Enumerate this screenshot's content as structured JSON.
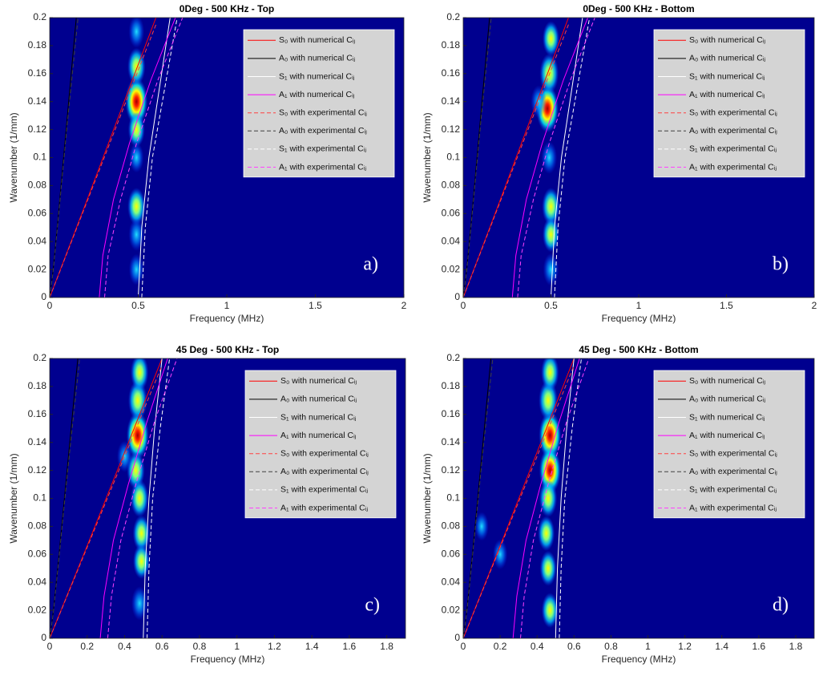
{
  "chart_data": [
    {
      "type": "line",
      "title": "0Deg - 500 KHz - Top",
      "xlabel": "Frequency (MHz)",
      "ylabel": "Wavenumber (1/mm)",
      "annotation": "a)",
      "xlim": [
        0,
        2
      ],
      "ylim": [
        0,
        0.2
      ],
      "xticks": [
        0,
        0.5,
        1,
        1.5,
        2
      ],
      "yticks": [
        0,
        0.02,
        0.04,
        0.06,
        0.08,
        0.1,
        0.12,
        0.14,
        0.16,
        0.18,
        0.2
      ],
      "background": "#00008f",
      "legend": "upper right",
      "series": [
        {
          "name": "S₀ with numerical Cᵢⱼ",
          "color": "#ff0000",
          "dash": false,
          "x": [
            0,
            0.2,
            0.4,
            0.6
          ],
          "values": [
            0,
            0.066,
            0.133,
            0.2
          ]
        },
        {
          "name": "A₀ with numerical Cᵢⱼ",
          "color": "#000000",
          "dash": false,
          "x": [
            0,
            0.02,
            0.05,
            0.1,
            0.15
          ],
          "values": [
            0,
            0.02,
            0.06,
            0.13,
            0.2
          ]
        },
        {
          "name": "S₁ with numerical Cᵢⱼ",
          "color": "#ffffff",
          "dash": false,
          "x": [
            0.5,
            0.52,
            0.56,
            0.62,
            0.68
          ],
          "values": [
            0,
            0.05,
            0.1,
            0.15,
            0.2
          ]
        },
        {
          "name": "A₁ with numerical Cᵢⱼ",
          "color": "#ff00ff",
          "dash": false,
          "x": [
            0.28,
            0.3,
            0.36,
            0.45,
            0.57,
            0.71
          ],
          "values": [
            0,
            0.03,
            0.07,
            0.11,
            0.155,
            0.2
          ]
        },
        {
          "name": "S₀ with experimental Cᵢⱼ",
          "color": "#ff4040",
          "dash": true,
          "x": [
            0,
            0.2,
            0.4,
            0.6
          ],
          "values": [
            0,
            0.065,
            0.13,
            0.195
          ]
        },
        {
          "name": "A₀ with experimental Cᵢⱼ",
          "color": "#404040",
          "dash": true,
          "x": [
            0,
            0.02,
            0.05,
            0.1,
            0.16
          ],
          "values": [
            0,
            0.019,
            0.058,
            0.125,
            0.2
          ]
        },
        {
          "name": "S₁ with experimental Cᵢⱼ",
          "color": "#ffffff",
          "dash": true,
          "x": [
            0.52,
            0.54,
            0.58,
            0.65,
            0.72
          ],
          "values": [
            0,
            0.05,
            0.1,
            0.15,
            0.2
          ]
        },
        {
          "name": "A₁ with experimental Cᵢⱼ",
          "color": "#ff40ff",
          "dash": true,
          "x": [
            0.31,
            0.33,
            0.4,
            0.49,
            0.61,
            0.75
          ],
          "values": [
            0,
            0.03,
            0.07,
            0.11,
            0.155,
            0.2
          ]
        }
      ],
      "peaks": {
        "x": [
          0.49,
          0.49,
          0.49,
          0.49,
          0.49,
          0.49,
          0.49,
          0.49
        ],
        "y": [
          0.14,
          0.165,
          0.12,
          0.065,
          0.045,
          0.02,
          0.1,
          0.19
        ],
        "intensity": [
          1,
          0.6,
          0.5,
          0.6,
          0.4,
          0.35,
          0.3,
          0.4
        ]
      }
    },
    {
      "type": "line",
      "title": "0Deg - 500 KHz - Bottom",
      "xlabel": "Frequency (MHz)",
      "ylabel": "Wavenumber (1/mm)",
      "annotation": "b)",
      "xlim": [
        0,
        2
      ],
      "ylim": [
        0,
        0.2
      ],
      "xticks": [
        0,
        0.5,
        1,
        1.5,
        2
      ],
      "yticks": [
        0,
        0.02,
        0.04,
        0.06,
        0.08,
        0.1,
        0.12,
        0.14,
        0.16,
        0.18,
        0.2
      ],
      "background": "#00008f",
      "legend": "upper right",
      "series": [
        {
          "name": "S₀ with numerical Cᵢⱼ",
          "color": "#ff0000",
          "dash": false,
          "x": [
            0,
            0.2,
            0.4,
            0.6
          ],
          "values": [
            0,
            0.066,
            0.133,
            0.2
          ]
        },
        {
          "name": "A₀ with numerical Cᵢⱼ",
          "color": "#000000",
          "dash": false,
          "x": [
            0,
            0.02,
            0.05,
            0.1,
            0.15
          ],
          "values": [
            0,
            0.02,
            0.06,
            0.13,
            0.2
          ]
        },
        {
          "name": "S₁ with numerical Cᵢⱼ",
          "color": "#ffffff",
          "dash": false,
          "x": [
            0.5,
            0.52,
            0.56,
            0.62,
            0.68
          ],
          "values": [
            0,
            0.05,
            0.1,
            0.15,
            0.2
          ]
        },
        {
          "name": "A₁ with numerical Cᵢⱼ",
          "color": "#ff00ff",
          "dash": false,
          "x": [
            0.28,
            0.3,
            0.36,
            0.45,
            0.57,
            0.71
          ],
          "values": [
            0,
            0.03,
            0.07,
            0.11,
            0.155,
            0.2
          ]
        },
        {
          "name": "S₀ with experimental Cᵢⱼ",
          "color": "#ff4040",
          "dash": true,
          "x": [
            0,
            0.2,
            0.4,
            0.6
          ],
          "values": [
            0,
            0.065,
            0.13,
            0.195
          ]
        },
        {
          "name": "A₀ with experimental Cᵢⱼ",
          "color": "#404040",
          "dash": true,
          "x": [
            0,
            0.02,
            0.05,
            0.1,
            0.16
          ],
          "values": [
            0,
            0.019,
            0.058,
            0.125,
            0.2
          ]
        },
        {
          "name": "S₁ with experimental Cᵢⱼ",
          "color": "#ffffff",
          "dash": true,
          "x": [
            0.52,
            0.54,
            0.58,
            0.65,
            0.72
          ],
          "values": [
            0,
            0.05,
            0.1,
            0.15,
            0.2
          ]
        },
        {
          "name": "A₁ with experimental Cᵢⱼ",
          "color": "#ff40ff",
          "dash": true,
          "x": [
            0.31,
            0.33,
            0.4,
            0.49,
            0.61,
            0.75
          ],
          "values": [
            0,
            0.03,
            0.07,
            0.11,
            0.155,
            0.2
          ]
        }
      ],
      "peaks": {
        "x": [
          0.48,
          0.49,
          0.5,
          0.5,
          0.5,
          0.49,
          0.43,
          0.5
        ],
        "y": [
          0.135,
          0.16,
          0.065,
          0.045,
          0.02,
          0.1,
          0.14,
          0.185
        ],
        "intensity": [
          1,
          0.7,
          0.6,
          0.5,
          0.4,
          0.4,
          0.4,
          0.5
        ]
      }
    },
    {
      "type": "line",
      "title": "45 Deg - 500 KHz - Top",
      "xlabel": "Frequency (MHz)",
      "ylabel": "Wavenumber (1/mm)",
      "annotation": "c)",
      "xlim": [
        0,
        1.9
      ],
      "ylim": [
        0,
        0.2
      ],
      "xticks": [
        0,
        0.2,
        0.4,
        0.6,
        0.8,
        1,
        1.2,
        1.4,
        1.6,
        1.8
      ],
      "yticks": [
        0,
        0.02,
        0.04,
        0.06,
        0.08,
        0.1,
        0.12,
        0.14,
        0.16,
        0.18,
        0.2
      ],
      "background": "#00008f",
      "legend": "upper right",
      "series": [
        {
          "name": "S₀ with numerical Cᵢⱼ",
          "color": "#ff0000",
          "dash": false,
          "x": [
            0,
            0.2,
            0.4,
            0.6
          ],
          "values": [
            0,
            0.066,
            0.133,
            0.2
          ]
        },
        {
          "name": "A₀ with numerical Cᵢⱼ",
          "color": "#000000",
          "dash": false,
          "x": [
            0,
            0.02,
            0.05,
            0.1,
            0.15
          ],
          "values": [
            0,
            0.02,
            0.06,
            0.13,
            0.2
          ]
        },
        {
          "name": "S₁ with numerical Cᵢⱼ",
          "color": "#ffffff",
          "dash": false,
          "x": [
            0.5,
            0.51,
            0.53,
            0.56,
            0.6
          ],
          "values": [
            0,
            0.05,
            0.1,
            0.15,
            0.2
          ]
        },
        {
          "name": "A₁ with numerical Cᵢⱼ",
          "color": "#ff00ff",
          "dash": false,
          "x": [
            0.27,
            0.29,
            0.34,
            0.42,
            0.52,
            0.63
          ],
          "values": [
            0,
            0.03,
            0.07,
            0.11,
            0.155,
            0.2
          ]
        },
        {
          "name": "S₀ with experimental Cᵢⱼ",
          "color": "#ff4040",
          "dash": true,
          "x": [
            0,
            0.2,
            0.4,
            0.6
          ],
          "values": [
            0,
            0.065,
            0.13,
            0.195
          ]
        },
        {
          "name": "A₀ with experimental Cᵢⱼ",
          "color": "#404040",
          "dash": true,
          "x": [
            0,
            0.02,
            0.05,
            0.1,
            0.16
          ],
          "values": [
            0,
            0.019,
            0.058,
            0.125,
            0.2
          ]
        },
        {
          "name": "S₁ with experimental Cᵢⱼ",
          "color": "#ffffff",
          "dash": true,
          "x": [
            0.52,
            0.53,
            0.55,
            0.59,
            0.64
          ],
          "values": [
            0,
            0.05,
            0.1,
            0.15,
            0.2
          ]
        },
        {
          "name": "A₁ with experimental Cᵢⱼ",
          "color": "#ff40ff",
          "dash": true,
          "x": [
            0.31,
            0.33,
            0.38,
            0.46,
            0.56,
            0.68
          ],
          "values": [
            0,
            0.03,
            0.07,
            0.11,
            0.155,
            0.2
          ]
        }
      ],
      "peaks": {
        "x": [
          0.47,
          0.47,
          0.48,
          0.46,
          0.48,
          0.49,
          0.49,
          0.48,
          0.4
        ],
        "y": [
          0.145,
          0.17,
          0.19,
          0.12,
          0.1,
          0.075,
          0.055,
          0.025,
          0.13
        ],
        "intensity": [
          1,
          0.7,
          0.6,
          0.6,
          0.6,
          0.55,
          0.5,
          0.45,
          0.35
        ]
      }
    },
    {
      "type": "line",
      "title": "45 Deg - 500 KHz - Bottom",
      "xlabel": "Frequency (MHz)",
      "ylabel": "Wavenumber (1/mm)",
      "annotation": "d)",
      "xlim": [
        0,
        1.9
      ],
      "ylim": [
        0,
        0.2
      ],
      "xticks": [
        0,
        0.2,
        0.4,
        0.6,
        0.8,
        1,
        1.2,
        1.4,
        1.6,
        1.8
      ],
      "yticks": [
        0,
        0.02,
        0.04,
        0.06,
        0.08,
        0.1,
        0.12,
        0.14,
        0.16,
        0.18,
        0.2
      ],
      "background": "#00008f",
      "legend": "upper right",
      "series": [
        {
          "name": "S₀ with numerical Cᵢⱼ",
          "color": "#ff0000",
          "dash": false,
          "x": [
            0,
            0.2,
            0.4,
            0.6
          ],
          "values": [
            0,
            0.066,
            0.133,
            0.2
          ]
        },
        {
          "name": "A₀ with numerical Cᵢⱼ",
          "color": "#000000",
          "dash": false,
          "x": [
            0,
            0.02,
            0.05,
            0.1,
            0.15
          ],
          "values": [
            0,
            0.02,
            0.06,
            0.13,
            0.2
          ]
        },
        {
          "name": "S₁ with numerical Cᵢⱼ",
          "color": "#ffffff",
          "dash": false,
          "x": [
            0.5,
            0.51,
            0.53,
            0.56,
            0.6
          ],
          "values": [
            0,
            0.05,
            0.1,
            0.15,
            0.2
          ]
        },
        {
          "name": "A₁ with numerical Cᵢⱼ",
          "color": "#ff00ff",
          "dash": false,
          "x": [
            0.27,
            0.29,
            0.34,
            0.42,
            0.52,
            0.63
          ],
          "values": [
            0,
            0.03,
            0.07,
            0.11,
            0.155,
            0.2
          ]
        },
        {
          "name": "S₀ with experimental Cᵢⱼ",
          "color": "#ff4040",
          "dash": true,
          "x": [
            0,
            0.2,
            0.4,
            0.6
          ],
          "values": [
            0,
            0.065,
            0.13,
            0.195
          ]
        },
        {
          "name": "A₀ with experimental Cᵢⱼ",
          "color": "#404040",
          "dash": true,
          "x": [
            0,
            0.02,
            0.05,
            0.1,
            0.16
          ],
          "values": [
            0,
            0.019,
            0.058,
            0.125,
            0.2
          ]
        },
        {
          "name": "S₁ with experimental Cᵢⱼ",
          "color": "#ffffff",
          "dash": true,
          "x": [
            0.52,
            0.53,
            0.55,
            0.59,
            0.64
          ],
          "values": [
            0,
            0.05,
            0.1,
            0.15,
            0.2
          ]
        },
        {
          "name": "A₁ with experimental Cᵢⱼ",
          "color": "#ff40ff",
          "dash": true,
          "x": [
            0.31,
            0.33,
            0.38,
            0.46,
            0.56,
            0.68
          ],
          "values": [
            0,
            0.03,
            0.07,
            0.11,
            0.155,
            0.2
          ]
        }
      ],
      "peaks": {
        "x": [
          0.47,
          0.47,
          0.46,
          0.47,
          0.46,
          0.45,
          0.46,
          0.47,
          0.2,
          0.1
        ],
        "y": [
          0.145,
          0.12,
          0.17,
          0.19,
          0.1,
          0.075,
          0.05,
          0.02,
          0.06,
          0.08
        ],
        "intensity": [
          1,
          0.95,
          0.7,
          0.6,
          0.6,
          0.5,
          0.5,
          0.5,
          0.3,
          0.25
        ]
      }
    }
  ]
}
